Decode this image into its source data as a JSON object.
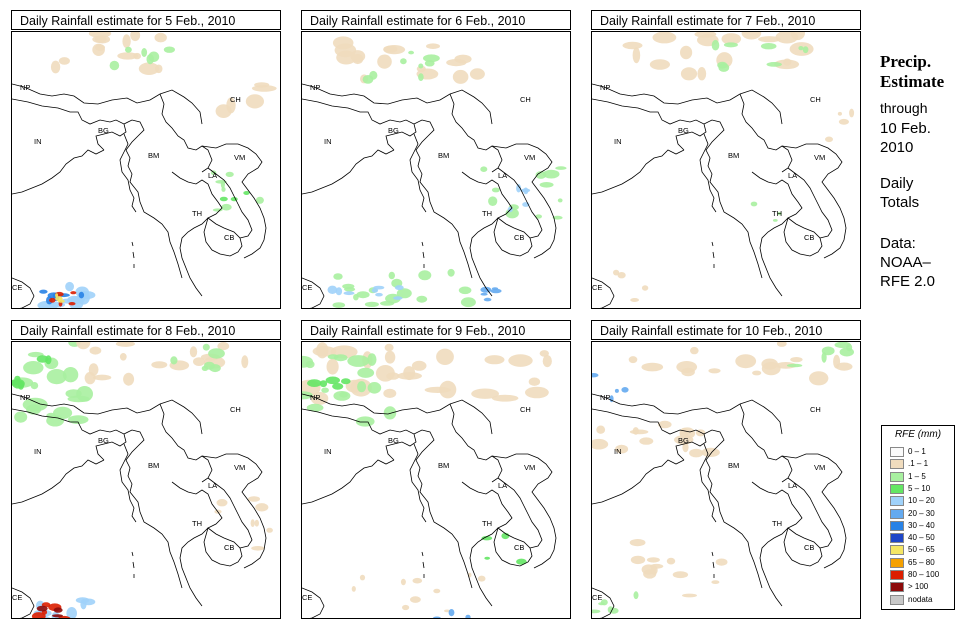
{
  "panels": [
    {
      "title": "Daily Rainfall estimate for  5 Feb., 2010"
    },
    {
      "title": "Daily Rainfall estimate for  6 Feb., 2010"
    },
    {
      "title": "Daily Rainfall estimate for  7 Feb., 2010"
    },
    {
      "title": "Daily Rainfall estimate for  8 Feb., 2010"
    },
    {
      "title": "Daily Rainfall estimate for  9 Feb., 2010"
    },
    {
      "title": "Daily Rainfall estimate for  10 Feb., 2010"
    }
  ],
  "country_labels": [
    "NP",
    "CH",
    "IN",
    "BG",
    "BM",
    "VM",
    "LA",
    "TH",
    "CB",
    "CE"
  ],
  "sidebar": {
    "title_line1": "Precip.",
    "title_line2": "Estimate",
    "through": "through",
    "date_line1": "10 Feb.",
    "date_line2": "2010",
    "daily": "Daily",
    "totals": "Totals",
    "data_label": "Data:",
    "source1": "NOAA–",
    "source2": "RFE 2.0"
  },
  "legend": {
    "title": "RFE (mm)",
    "items": [
      {
        "label": "0 – 1",
        "color": "#fafafa"
      },
      {
        "label": ".1 – 1",
        "color": "#f0dcbe"
      },
      {
        "label": "1 – 5",
        "color": "#a8f0a0"
      },
      {
        "label": "5 – 10",
        "color": "#64e664"
      },
      {
        "label": "10 – 20",
        "color": "#a0d2fa"
      },
      {
        "label": "20 – 30",
        "color": "#64aaf0"
      },
      {
        "label": "30 – 40",
        "color": "#2882e6"
      },
      {
        "label": "40 – 50",
        "color": "#1e46c8"
      },
      {
        "label": "50 – 65",
        "color": "#f5e664"
      },
      {
        "label": "65 – 80",
        "color": "#f5a000"
      },
      {
        "label": "80 – 100",
        "color": "#dc1e00"
      },
      {
        "label": "> 100",
        "color": "#8c0a0a"
      },
      {
        "label": "nodata",
        "color": "#c8c8c8"
      }
    ]
  }
}
